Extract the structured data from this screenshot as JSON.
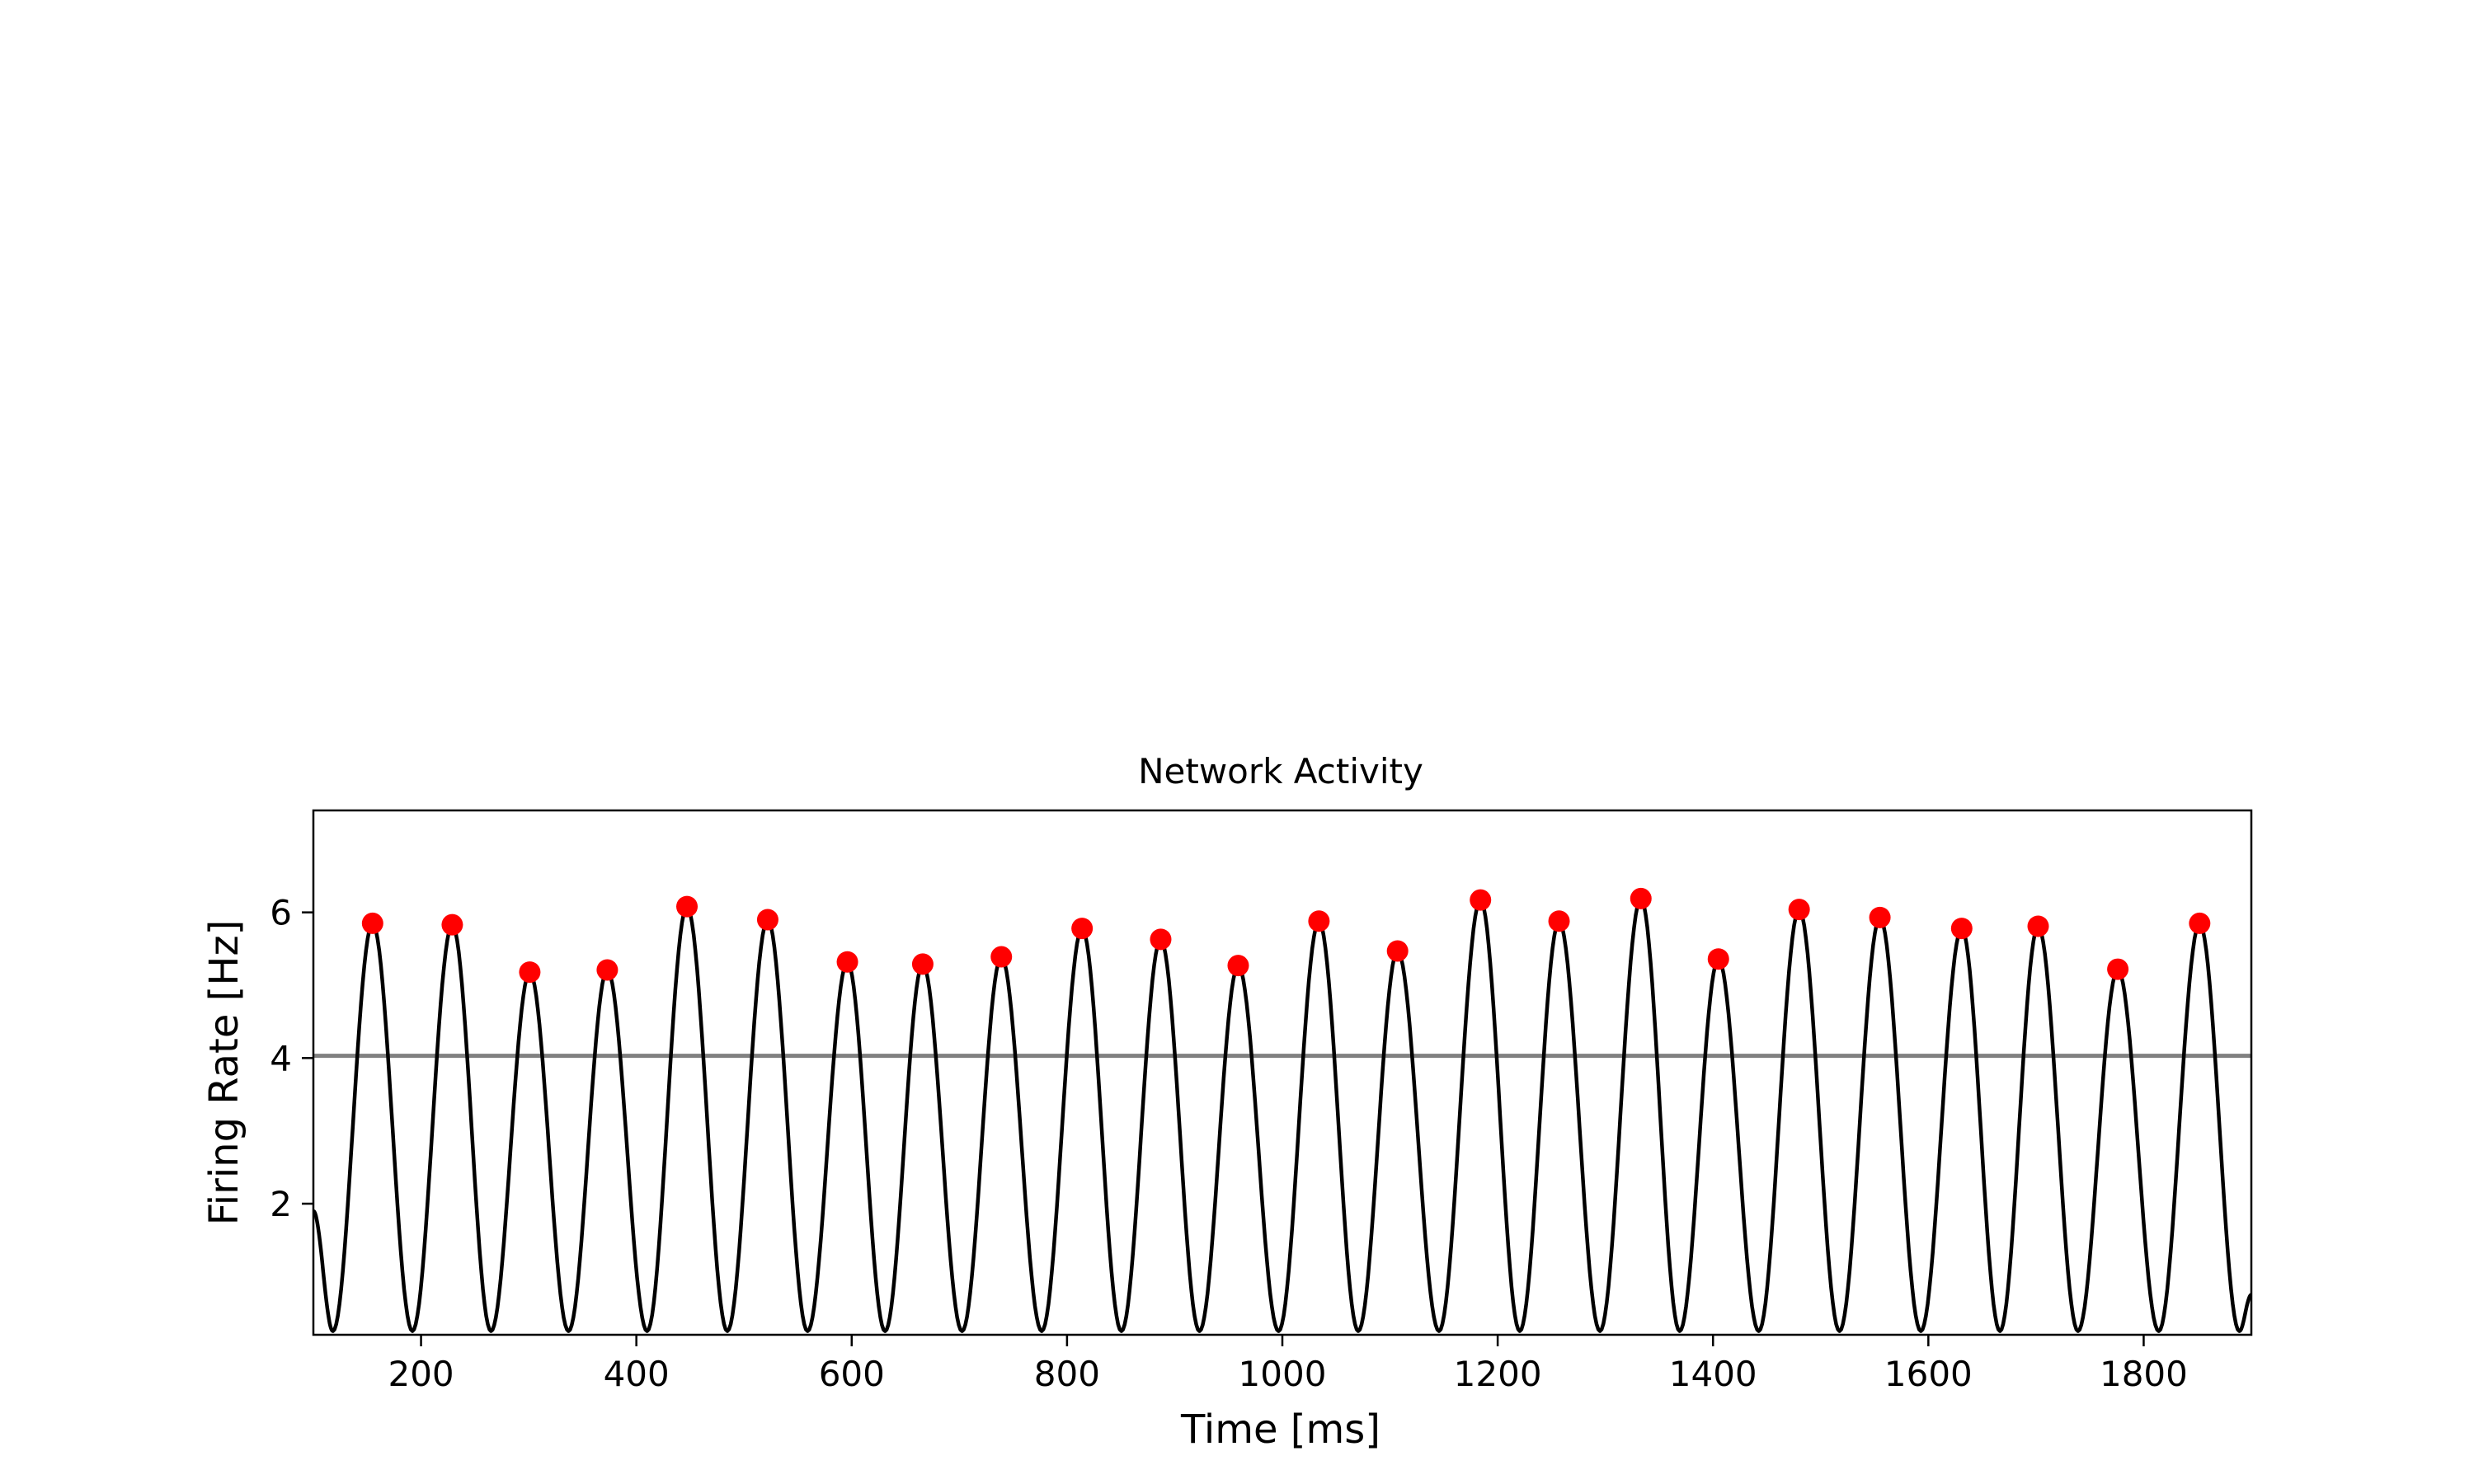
{
  "chart_data": {
    "type": "line",
    "title": "Network Activity",
    "xlabel": "Time [ms]",
    "ylabel": "Firing Rate [Hz]",
    "xlim": [
      100,
      1900
    ],
    "ylim": [
      0.2,
      7.4
    ],
    "xticks": [
      200,
      400,
      600,
      800,
      1000,
      1200,
      1400,
      1600,
      1800
    ],
    "xtick_labels": [
      "200",
      "400",
      "600",
      "800",
      "1000",
      "1200",
      "1400",
      "1600",
      "1800"
    ],
    "yticks": [
      2,
      4,
      6
    ],
    "ytick_labels": [
      "2",
      "4",
      "6"
    ],
    "grid": false,
    "series": [
      {
        "style": "line",
        "color": "#000000",
        "baseline": 0.25,
        "period": 73.7,
        "start_value": 1.9,
        "end_value": 0.75
      },
      {
        "style": "markers",
        "color": "#ff0000",
        "x": [
          155,
          229,
          301,
          373,
          447,
          522,
          596,
          666,
          739,
          814,
          887,
          959,
          1034,
          1107,
          1184,
          1257,
          1333,
          1405,
          1480,
          1555,
          1631,
          1702,
          1776,
          1852
        ],
        "y": [
          5.85,
          5.83,
          5.18,
          5.21,
          6.08,
          5.9,
          5.32,
          5.29,
          5.39,
          5.78,
          5.63,
          5.27,
          5.88,
          5.47,
          6.17,
          5.88,
          6.19,
          5.36,
          6.04,
          5.93,
          5.78,
          5.81,
          5.22,
          5.85
        ]
      },
      {
        "style": "hline",
        "color": "#808080",
        "y": 4.03
      }
    ]
  }
}
